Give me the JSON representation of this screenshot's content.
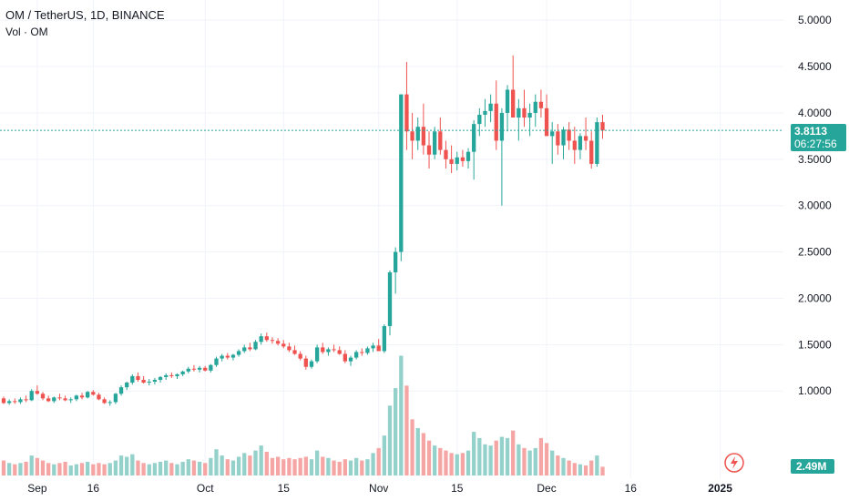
{
  "header": {
    "symbol": "OM / TetherUS, 1D, BINANCE",
    "volume_label": "Vol · OM"
  },
  "price_badge": {
    "price": "3.8113",
    "countdown": "06:27:56",
    "color": "#26a69a"
  },
  "volume_badge": {
    "value": "2.49M",
    "color": "#26a69a"
  },
  "colors": {
    "up": "#26a69a",
    "down": "#ef5350",
    "up_volume": "#94d1cb",
    "down_volume": "#f5a6a4",
    "grid": "#f0f3fa",
    "axis_text": "#131722",
    "current_price_line": "#26a69a",
    "flash_icon": "#ef5350"
  },
  "flash_icon": "lightning-icon",
  "chart_data": {
    "type": "candlestick",
    "symbol": "OM / TetherUS",
    "interval": "1D",
    "exchange": "BINANCE",
    "y_axis": {
      "ticks": [
        "5.0000",
        "4.5000",
        "4.0000",
        "3.5000",
        "3.0000",
        "2.5000",
        "2.0000",
        "1.5000",
        "1.0000"
      ],
      "range": [
        0.55,
        5.1
      ]
    },
    "x_axis": {
      "ticks": [
        {
          "label": "Sep",
          "day": 6
        },
        {
          "label": "16",
          "day": 16
        },
        {
          "label": "Oct",
          "day": 36
        },
        {
          "label": "15",
          "day": 50
        },
        {
          "label": "Nov",
          "day": 67
        },
        {
          "label": "15",
          "day": 81
        },
        {
          "label": "Dec",
          "day": 97
        },
        {
          "label": "16",
          "day": 112
        },
        {
          "label": "2025",
          "day": 128
        }
      ]
    },
    "current_price": 3.8113,
    "grid": true,
    "volume_max": 1.0,
    "ohlcv": [
      [
        0.92,
        0.94,
        0.86,
        0.87,
        0.12
      ],
      [
        0.87,
        0.91,
        0.85,
        0.89,
        0.1
      ],
      [
        0.89,
        0.92,
        0.86,
        0.88,
        0.09
      ],
      [
        0.88,
        0.93,
        0.86,
        0.91,
        0.1
      ],
      [
        0.91,
        0.95,
        0.88,
        0.9,
        0.11
      ],
      [
        0.9,
        1.02,
        0.89,
        1.0,
        0.16
      ],
      [
        1.0,
        1.06,
        0.96,
        0.97,
        0.14
      ],
      [
        0.97,
        0.99,
        0.9,
        0.92,
        0.12
      ],
      [
        0.92,
        0.95,
        0.88,
        0.89,
        0.1
      ],
      [
        0.89,
        0.94,
        0.87,
        0.93,
        0.09
      ],
      [
        0.93,
        0.97,
        0.9,
        0.92,
        0.1
      ],
      [
        0.92,
        0.95,
        0.89,
        0.9,
        0.11
      ],
      [
        0.9,
        0.93,
        0.87,
        0.91,
        0.08
      ],
      [
        0.91,
        0.96,
        0.89,
        0.95,
        0.09
      ],
      [
        0.95,
        0.98,
        0.91,
        0.93,
        0.1
      ],
      [
        0.93,
        1.0,
        0.92,
        0.99,
        0.11
      ],
      [
        0.99,
        1.01,
        0.95,
        0.96,
        0.09
      ],
      [
        0.96,
        0.98,
        0.9,
        0.91,
        0.1
      ],
      [
        0.91,
        0.93,
        0.86,
        0.87,
        0.09
      ],
      [
        0.87,
        0.9,
        0.84,
        0.88,
        0.1
      ],
      [
        0.88,
        0.98,
        0.86,
        0.97,
        0.12
      ],
      [
        0.97,
        1.06,
        0.95,
        1.04,
        0.16
      ],
      [
        1.04,
        1.1,
        1.01,
        1.09,
        0.15
      ],
      [
        1.09,
        1.18,
        1.07,
        1.16,
        0.17
      ],
      [
        1.16,
        1.2,
        1.1,
        1.12,
        0.12
      ],
      [
        1.12,
        1.16,
        1.08,
        1.09,
        0.1
      ],
      [
        1.09,
        1.13,
        1.06,
        1.1,
        0.09
      ],
      [
        1.1,
        1.14,
        1.07,
        1.12,
        0.1
      ],
      [
        1.12,
        1.16,
        1.09,
        1.15,
        0.11
      ],
      [
        1.15,
        1.19,
        1.12,
        1.17,
        0.12
      ],
      [
        1.17,
        1.2,
        1.14,
        1.16,
        0.1
      ],
      [
        1.16,
        1.19,
        1.13,
        1.18,
        0.09
      ],
      [
        1.18,
        1.22,
        1.16,
        1.21,
        0.11
      ],
      [
        1.21,
        1.26,
        1.19,
        1.24,
        0.13
      ],
      [
        1.24,
        1.28,
        1.21,
        1.23,
        0.12
      ],
      [
        1.23,
        1.27,
        1.2,
        1.25,
        0.11
      ],
      [
        1.25,
        1.27,
        1.21,
        1.22,
        0.1
      ],
      [
        1.22,
        1.29,
        1.2,
        1.28,
        0.14
      ],
      [
        1.28,
        1.37,
        1.26,
        1.35,
        0.21
      ],
      [
        1.35,
        1.4,
        1.32,
        1.38,
        0.16
      ],
      [
        1.38,
        1.41,
        1.34,
        1.36,
        0.13
      ],
      [
        1.36,
        1.4,
        1.33,
        1.39,
        0.12
      ],
      [
        1.39,
        1.45,
        1.37,
        1.43,
        0.15
      ],
      [
        1.43,
        1.5,
        1.41,
        1.47,
        0.18
      ],
      [
        1.47,
        1.52,
        1.43,
        1.45,
        0.16
      ],
      [
        1.45,
        1.55,
        1.44,
        1.53,
        0.2
      ],
      [
        1.53,
        1.62,
        1.5,
        1.59,
        0.24
      ],
      [
        1.59,
        1.63,
        1.53,
        1.55,
        0.19
      ],
      [
        1.55,
        1.58,
        1.51,
        1.54,
        0.14
      ],
      [
        1.54,
        1.57,
        1.49,
        1.51,
        0.15
      ],
      [
        1.51,
        1.55,
        1.46,
        1.48,
        0.13
      ],
      [
        1.48,
        1.52,
        1.42,
        1.44,
        0.14
      ],
      [
        1.44,
        1.49,
        1.39,
        1.4,
        0.13
      ],
      [
        1.4,
        1.43,
        1.33,
        1.35,
        0.14
      ],
      [
        1.35,
        1.38,
        1.23,
        1.26,
        0.15
      ],
      [
        1.26,
        1.34,
        1.24,
        1.32,
        0.13
      ],
      [
        1.32,
        1.5,
        1.3,
        1.47,
        0.2
      ],
      [
        1.47,
        1.52,
        1.4,
        1.42,
        0.15
      ],
      [
        1.42,
        1.47,
        1.38,
        1.45,
        0.14
      ],
      [
        1.45,
        1.5,
        1.42,
        1.44,
        0.12
      ],
      [
        1.44,
        1.48,
        1.39,
        1.4,
        0.11
      ],
      [
        1.4,
        1.44,
        1.3,
        1.32,
        0.13
      ],
      [
        1.32,
        1.38,
        1.27,
        1.36,
        0.12
      ],
      [
        1.36,
        1.44,
        1.34,
        1.42,
        0.14
      ],
      [
        1.42,
        1.46,
        1.38,
        1.41,
        0.12
      ],
      [
        1.41,
        1.48,
        1.39,
        1.46,
        0.13
      ],
      [
        1.46,
        1.52,
        1.42,
        1.49,
        0.18
      ],
      [
        1.49,
        1.56,
        1.45,
        1.43,
        0.22
      ],
      [
        1.43,
        1.72,
        1.41,
        1.7,
        0.32
      ],
      [
        1.7,
        2.3,
        1.6,
        2.28,
        0.56
      ],
      [
        2.28,
        2.55,
        2.05,
        2.5,
        0.7
      ],
      [
        2.5,
        4.2,
        2.4,
        4.2,
        0.96
      ],
      [
        4.2,
        4.55,
        3.6,
        3.8,
        0.72
      ],
      [
        3.8,
        4.0,
        3.5,
        3.7,
        0.45
      ],
      [
        3.7,
        3.95,
        3.6,
        3.85,
        0.38
      ],
      [
        3.85,
        4.1,
        3.55,
        3.65,
        0.34
      ],
      [
        3.65,
        3.8,
        3.4,
        3.55,
        0.28
      ],
      [
        3.55,
        3.85,
        3.5,
        3.8,
        0.24
      ],
      [
        3.8,
        3.95,
        3.55,
        3.6,
        0.22
      ],
      [
        3.6,
        3.7,
        3.4,
        3.5,
        0.2
      ],
      [
        3.5,
        3.65,
        3.35,
        3.45,
        0.18
      ],
      [
        3.45,
        3.58,
        3.38,
        3.52,
        0.17
      ],
      [
        3.52,
        3.6,
        3.42,
        3.48,
        0.18
      ],
      [
        3.48,
        3.62,
        3.4,
        3.58,
        0.2
      ],
      [
        3.58,
        3.92,
        3.28,
        3.88,
        0.35
      ],
      [
        3.88,
        4.05,
        3.75,
        3.98,
        0.3
      ],
      [
        3.98,
        4.15,
        3.85,
        4.02,
        0.25
      ],
      [
        4.02,
        4.2,
        3.9,
        4.1,
        0.24
      ],
      [
        4.1,
        4.35,
        3.6,
        3.7,
        0.28
      ],
      [
        3.7,
        4.05,
        3.0,
        4.0,
        0.31
      ],
      [
        4.0,
        4.3,
        3.8,
        4.25,
        0.3
      ],
      [
        4.25,
        4.62,
        4.0,
        3.95,
        0.36
      ],
      [
        3.95,
        4.15,
        3.7,
        4.05,
        0.25
      ],
      [
        4.05,
        4.25,
        3.85,
        3.95,
        0.22
      ],
      [
        3.95,
        4.1,
        3.75,
        4.0,
        0.2
      ],
      [
        4.0,
        4.2,
        3.85,
        4.12,
        0.22
      ],
      [
        4.12,
        4.25,
        3.95,
        4.05,
        0.3
      ],
      [
        4.05,
        4.2,
        3.9,
        3.75,
        0.26
      ],
      [
        3.75,
        3.9,
        3.45,
        3.8,
        0.2
      ],
      [
        3.8,
        3.88,
        3.55,
        3.65,
        0.16
      ],
      [
        3.65,
        3.85,
        3.5,
        3.82,
        0.14
      ],
      [
        3.82,
        3.9,
        3.6,
        3.7,
        0.12
      ],
      [
        3.7,
        3.85,
        3.45,
        3.6,
        0.1
      ],
      [
        3.6,
        3.78,
        3.5,
        3.75,
        0.09
      ],
      [
        3.75,
        3.95,
        3.6,
        3.7,
        0.08
      ],
      [
        3.7,
        3.8,
        3.4,
        3.45,
        0.12
      ],
      [
        3.45,
        3.95,
        3.42,
        3.9,
        0.16
      ],
      [
        3.9,
        3.98,
        3.72,
        3.81,
        0.07
      ]
    ]
  }
}
